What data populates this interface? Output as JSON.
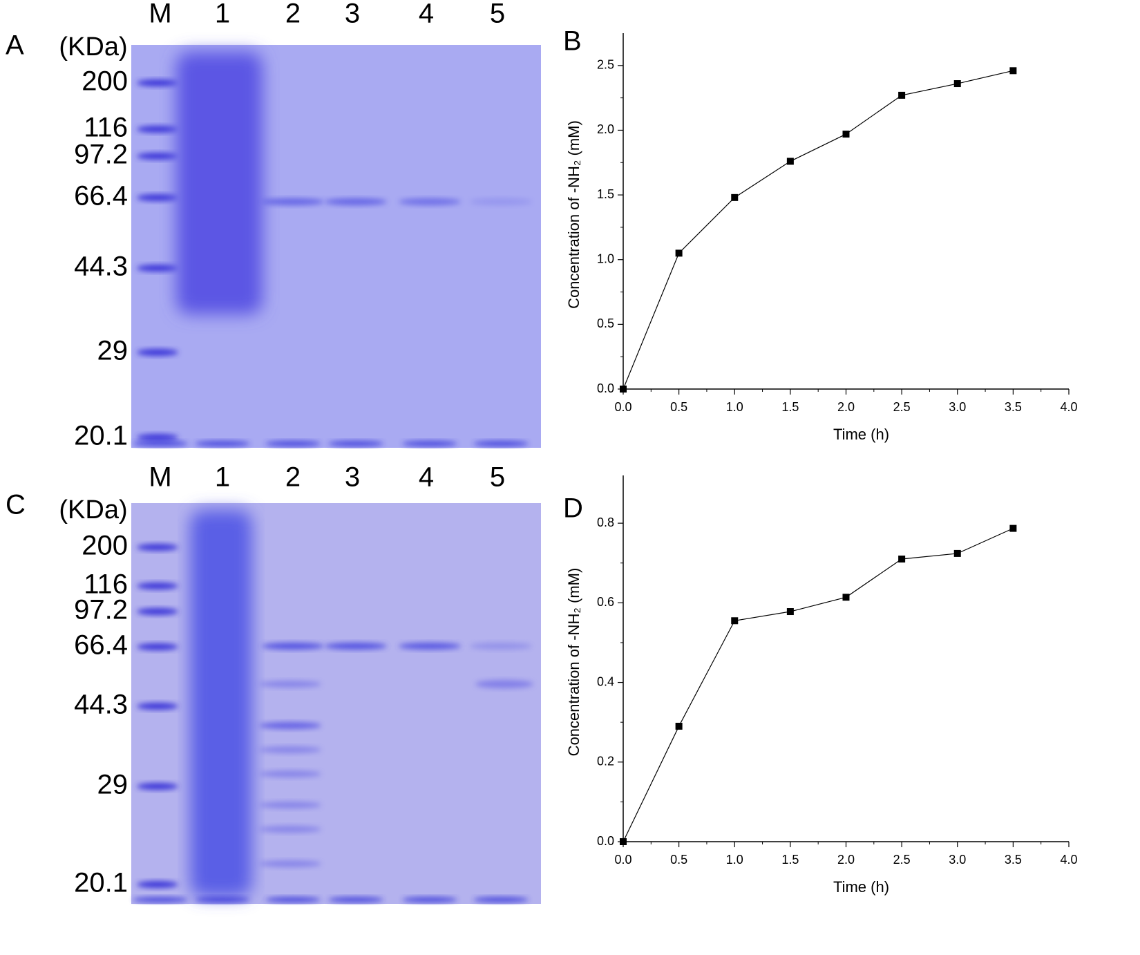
{
  "gels": [
    {
      "panel_label": "A",
      "unit": "(KDa)",
      "lanes": [
        "M",
        "1",
        "2",
        "3",
        "4",
        "5"
      ],
      "markers": [
        "200",
        "116",
        "97.2",
        "66.4",
        "44.3",
        "29",
        "20.1"
      ]
    },
    {
      "panel_label": "C",
      "unit": "(KDa)",
      "lanes": [
        "M",
        "1",
        "2",
        "3",
        "4",
        "5"
      ],
      "markers": [
        "200",
        "116",
        "97.2",
        "66.4",
        "44.3",
        "29",
        "20.1"
      ]
    }
  ],
  "chart_data": [
    {
      "type": "line",
      "panel_label": "B",
      "x_label": "Time (h)",
      "y_label": "Concentration of -NH₂ (mM)",
      "x": [
        0,
        0.5,
        1.0,
        1.5,
        2.0,
        2.5,
        3.0,
        3.5
      ],
      "series": [
        {
          "color": "#000000",
          "values": [
            0,
            1.05,
            1.48,
            1.76,
            1.97,
            2.27,
            2.36,
            2.46
          ]
        }
      ],
      "xlim": [
        0,
        4
      ],
      "ylim": [
        0,
        2.75
      ],
      "xticks": [
        {
          "value": 0,
          "label": "0.0"
        },
        {
          "value": 0.5,
          "label": "0.5"
        },
        {
          "value": 1,
          "label": "1.0"
        },
        {
          "value": 1.5,
          "label": "1.5"
        },
        {
          "value": 2,
          "label": "2.0"
        },
        {
          "value": 2.5,
          "label": "2.5"
        },
        {
          "value": 3,
          "label": "3.0"
        },
        {
          "value": 3.5,
          "label": "3.5"
        },
        {
          "value": 4,
          "label": "4.0"
        }
      ],
      "yticks": [
        {
          "value": 0,
          "label": "0.0"
        },
        {
          "value": 0.5,
          "label": "0.5"
        },
        {
          "value": 1,
          "label": "1.0"
        },
        {
          "value": 1.5,
          "label": "1.5"
        },
        {
          "value": 2,
          "label": "2.0"
        },
        {
          "value": 2.5,
          "label": "2.5"
        }
      ]
    },
    {
      "type": "line",
      "panel_label": "D",
      "x_label": "Time (h)",
      "y_label": "Concentration of -NH₂ (mM)",
      "x": [
        0,
        0.5,
        1.0,
        1.5,
        2.0,
        2.5,
        3.0,
        3.5
      ],
      "series": [
        {
          "color": "#000000",
          "values": [
            0,
            0.29,
            0.555,
            0.578,
            0.614,
            0.71,
            0.724,
            0.787
          ]
        }
      ],
      "xlim": [
        0,
        4
      ],
      "ylim": [
        0,
        0.92
      ],
      "xticks": [
        {
          "value": 0,
          "label": "0.0"
        },
        {
          "value": 0.5,
          "label": "0.5"
        },
        {
          "value": 1,
          "label": "1.0"
        },
        {
          "value": 1.5,
          "label": "1.5"
        },
        {
          "value": 2,
          "label": "2.0"
        },
        {
          "value": 2.5,
          "label": "2.5"
        },
        {
          "value": 3,
          "label": "3.0"
        },
        {
          "value": 3.5,
          "label": "3.5"
        },
        {
          "value": 4,
          "label": "4.0"
        }
      ],
      "yticks": [
        {
          "value": 0,
          "label": "0.0"
        },
        {
          "value": 0.2,
          "label": "0.2"
        },
        {
          "value": 0.4,
          "label": "0.4"
        },
        {
          "value": 0.6,
          "label": "0.6"
        },
        {
          "value": 0.8,
          "label": "0.8"
        }
      ]
    }
  ]
}
